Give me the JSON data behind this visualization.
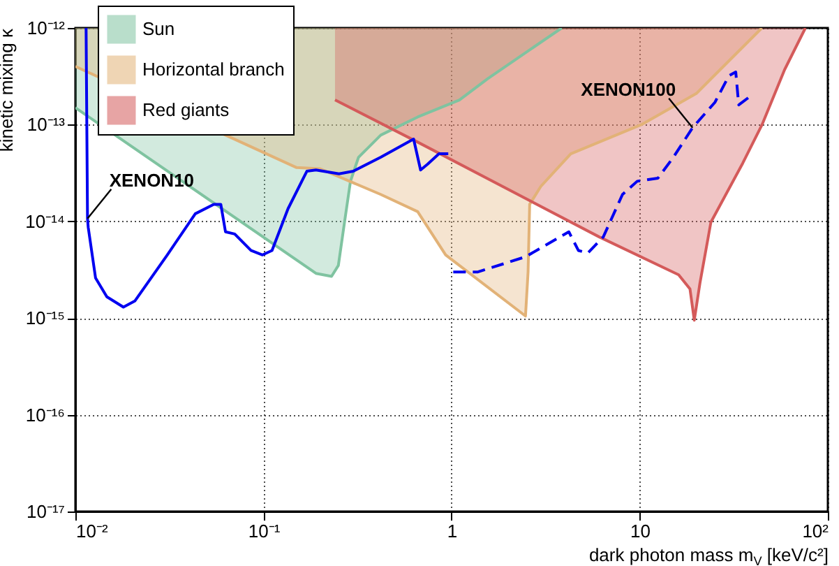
{
  "chart_data": {
    "type": "line",
    "xlabel": "dark photon mass m$_{V}$ [keV/c²]",
    "ylabel": "kinetic mixing κ",
    "log": "xy",
    "xlim": [
      0.01,
      100
    ],
    "ylim": [
      1e-17,
      1e-12
    ],
    "xticks": [
      {
        "value": 0.01,
        "label": "10⁻²"
      },
      {
        "value": 0.1,
        "label": "10⁻¹"
      },
      1,
      10,
      {
        "value": 100,
        "label": "10²"
      }
    ],
    "yticks": [
      {
        "value": 1e-17,
        "label": "10⁻¹⁷"
      },
      {
        "value": 1e-16,
        "label": "10⁻¹⁶"
      },
      {
        "value": 1e-15,
        "label": "10⁻¹⁵"
      },
      {
        "value": 1e-14,
        "label": "10⁻¹⁴"
      },
      {
        "value": 1e-13,
        "label": "10⁻¹³"
      },
      {
        "value": 1e-12,
        "label": "10⁻¹²"
      }
    ],
    "grid": true,
    "legend": "top left",
    "series": [
      {
        "name": "Sun",
        "color": "#7fc3a0",
        "x": [
          0.01,
          0.19,
          0.23,
          0.25,
          0.27,
          0.29,
          0.32,
          0.42,
          0.66,
          1.1,
          1.56,
          3.85
        ],
        "values": [
          1.5e-13,
          2.9e-15,
          2.7e-15,
          3.5e-15,
          1e-14,
          2.6e-14,
          4.6e-14,
          7.8e-14,
          1.2e-13,
          1.8e-13,
          3e-13,
          1e-12
        ],
        "lower": [
          1.5e-13,
          2.9e-15,
          2.7e-15,
          3.5e-15,
          1e-14,
          2.6e-14,
          4.6e-14,
          7.8e-14,
          1.2e-13,
          1.8e-13,
          3e-13,
          1e-12
        ],
        "upper": [
          1e-12,
          1e-12,
          1e-12,
          1e-12,
          1e-12,
          1e-12,
          1e-12,
          1e-12,
          1e-12,
          1e-12,
          1e-12,
          1e-12
        ]
      },
      {
        "name": "Horizontal branch",
        "color": "#e2b277",
        "x": [
          0.01,
          0.15,
          0.2,
          0.42,
          0.66,
          0.93,
          2.47,
          2.55,
          2.6,
          2.98,
          4.3,
          10.2,
          20,
          44.6
        ],
        "values": [
          4e-13,
          3.6e-14,
          3.5e-14,
          1.9e-14,
          1.26e-14,
          4.5e-15,
          1.05e-15,
          3e-15,
          1.5e-14,
          2.3e-14,
          5e-14,
          1e-13,
          2.1e-13,
          1e-12
        ],
        "lower": [
          4e-13,
          3.6e-14,
          3.5e-14,
          1.9e-14,
          1.26e-14,
          4.5e-15,
          1.05e-15,
          3e-15,
          1.5e-14,
          2.3e-14,
          5e-14,
          1e-13,
          2.1e-13,
          1e-12
        ],
        "upper": [
          1e-12,
          1e-12,
          1e-12,
          1e-12,
          1e-12,
          1e-12,
          1e-12,
          1e-12,
          1e-12,
          1e-12,
          1e-12,
          1e-12,
          1e-12,
          1e-12
        ]
      },
      {
        "name": "Red giants",
        "color": "#d45a5a",
        "x": [
          0.24,
          0.66,
          6.1,
          16.1,
          18.5,
          19.5,
          20.9,
          23.9,
          35.3,
          44.7,
          58.9,
          76
        ],
        "values": [
          1.8e-13,
          6.6e-14,
          6.9e-15,
          2.8e-15,
          2e-15,
          9.5e-16,
          2.3e-15,
          9.8e-15,
          4e-14,
          1e-13,
          3.7e-13,
          1e-12
        ],
        "lower": [
          1.8e-13,
          6.6e-14,
          6.9e-15,
          2.8e-15,
          2e-15,
          9.5e-16,
          2.3e-15,
          9.8e-15,
          4e-14,
          1e-13,
          3.7e-13,
          1e-12
        ],
        "upper": [
          1e-12,
          1e-12,
          1e-12,
          1e-12,
          1e-12,
          1e-12,
          1e-12,
          1e-12,
          1e-12,
          1e-12,
          1e-12,
          1e-12
        ]
      },
      {
        "type": "line",
        "color": "#0000f0",
        "line_style": "solid",
        "x": [
          0.0114,
          0.0116,
          0.0117,
          0.0128,
          0.0147,
          0.018,
          0.0207,
          0.0308,
          0.0434,
          0.0544,
          0.0593,
          0.0628,
          0.0703,
          0.0858,
          0.0988,
          0.111,
          0.135,
          0.17,
          0.19,
          0.252,
          0.3,
          0.42,
          0.628,
          0.684,
          0.745,
          0.857,
          0.96
        ],
        "values": [
          1e-12,
          1.07e-14,
          8.7e-15,
          2.6e-15,
          1.66e-15,
          1.3e-15,
          1.5e-15,
          4.5e-15,
          1.2e-14,
          1.5e-14,
          1.5e-14,
          7.8e-15,
          7.4e-15,
          5e-15,
          4.5e-15,
          5e-15,
          1.35e-14,
          3.3e-14,
          3.4e-14,
          3.1e-14,
          3.3e-14,
          4.6e-14,
          7.1e-14,
          3.4e-14,
          3.9e-14,
          5e-14,
          5e-14
        ]
      },
      {
        "type": "line",
        "color": "#0000f0",
        "line_style": "dashed",
        "x": [
          1.02,
          1.38,
          2.47,
          4.2,
          4.72,
          5.3,
          6.4,
          8.1,
          9.7,
          12.5,
          15.1,
          19.1,
          25.1,
          29.8,
          32.4,
          33.6,
          37.8
        ],
        "values": [
          3e-15,
          3e-15,
          4.3e-15,
          7.8e-15,
          5e-15,
          4.7e-15,
          6.9e-15,
          1.9e-14,
          2.6e-14,
          2.8e-14,
          4.6e-14,
          9.3e-14,
          1.7e-13,
          3.2e-13,
          3.5e-13,
          1.6e-13,
          1.9e-13
        ]
      }
    ],
    "annotations": [
      {
        "text": "XENON10",
        "x": 0.0116,
        "y": 1.07e-14
      },
      {
        "text": "XENON100",
        "x": 19.1,
        "y": 9.3e-14
      }
    ]
  }
}
